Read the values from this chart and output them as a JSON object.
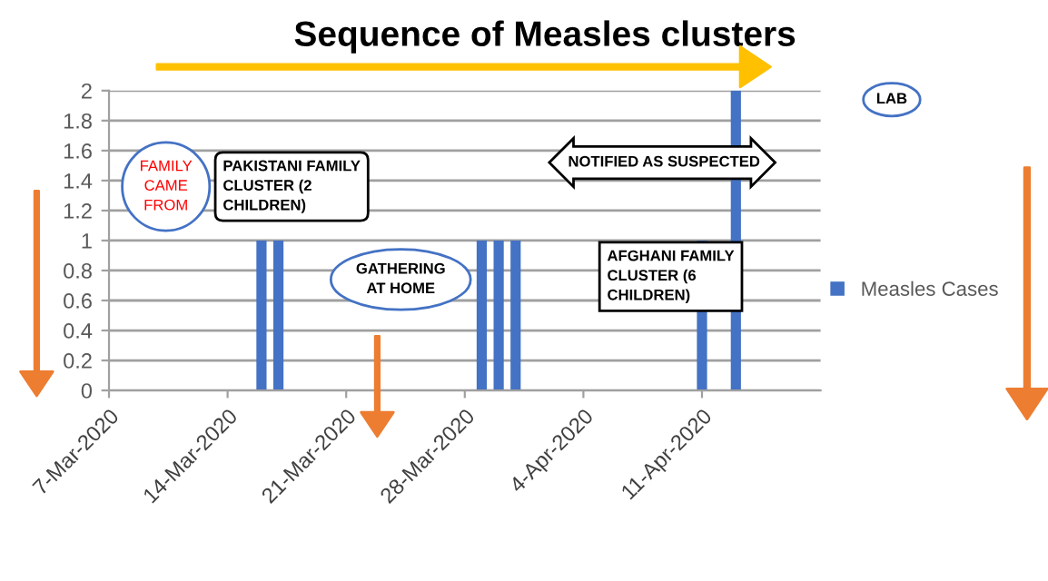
{
  "chart_data": {
    "type": "bar",
    "title": "Sequence of Measles clusters",
    "x": [
      "2020-03-16",
      "2020-03-17",
      "2020-03-29",
      "2020-03-30",
      "2020-03-31",
      "2020-04-11",
      "2020-04-13"
    ],
    "series": [
      {
        "name": "Measles Cases",
        "color": "#4472c4",
        "values": [
          1,
          1,
          1,
          1,
          1,
          1,
          2
        ]
      }
    ],
    "xlim": [
      "2020-03-07",
      "2020-04-18"
    ],
    "xticks": [
      {
        "value": "2020-03-07",
        "label": "7-Mar-2020"
      },
      {
        "value": "2020-03-14",
        "label": "14-Mar-2020"
      },
      {
        "value": "2020-03-21",
        "label": "21-Mar-2020"
      },
      {
        "value": "2020-03-28",
        "label": "28-Mar-2020"
      },
      {
        "value": "2020-04-04",
        "label": "4-Apr-2020"
      },
      {
        "value": "2020-04-11",
        "label": "11-Apr-2020"
      }
    ],
    "ylim": [
      0,
      2
    ],
    "yticks": [
      0,
      0.2,
      0.4,
      0.6,
      0.8,
      1,
      1.2,
      1.4,
      1.6,
      1.8,
      2
    ],
    "grid": "y",
    "legend": "right",
    "annotations": [
      "FAMILY\nCAME\nFROM",
      "PAKISTANI FAMILY\nCLUSTER (2\nCHILDREN)",
      "GATHERING\nAT HOME",
      "NOTIFIED AS SUSPECTED",
      "AFGHANI FAMILY\nCLUSTER (6\nCHILDREN)",
      "LAB"
    ]
  }
}
